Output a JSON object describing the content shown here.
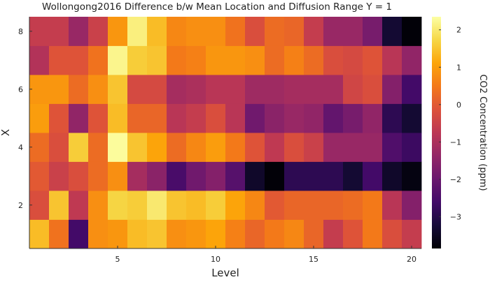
{
  "chart_data": {
    "type": "heatmap",
    "title": "Wollongong2016 Difference b/w Mean Location and Diffusion Range Y = 1",
    "xlabel": "Level",
    "ylabel": "X",
    "colorbar_label": "CO2 Concentration (ppm)",
    "colormap": "inferno",
    "x_categories": [
      1,
      2,
      3,
      4,
      5,
      6,
      7,
      8,
      9,
      10,
      11,
      12,
      13,
      14,
      15,
      16,
      17,
      18,
      19,
      20
    ],
    "y_categories": [
      1,
      2,
      3,
      4,
      5,
      6,
      7,
      8
    ],
    "xlim": [
      0.5,
      20.5
    ],
    "ylim": [
      0.5,
      8.5
    ],
    "x_ticks": [
      5,
      10,
      15,
      20
    ],
    "y_ticks": [
      2,
      4,
      6,
      8
    ],
    "color_range": [
      -3.85,
      2.35
    ],
    "colorbar_ticks": [
      2,
      1,
      0,
      -1,
      -2,
      -3
    ],
    "values": [
      [
        1.4,
        0.4,
        -2.6,
        0.8,
        0.9,
        1.4,
        1.5,
        0.8,
        0.9,
        1.1,
        0.6,
        0.2,
        0.5,
        0.7,
        0.2,
        -0.6,
        -0.1,
        0.5,
        -0.2,
        -0.6
      ],
      [
        -0.2,
        1.5,
        -0.7,
        0.8,
        1.7,
        1.6,
        2.0,
        1.5,
        1.4,
        1.6,
        1.1,
        0.7,
        0.0,
        0.2,
        0.2,
        0.2,
        0.3,
        0.5,
        -0.8,
        -1.6
      ],
      [
        0.0,
        -0.5,
        -0.2,
        0.3,
        0.8,
        -1.1,
        -1.5,
        -2.5,
        -1.9,
        -1.6,
        -2.3,
        -3.4,
        -3.8,
        -2.9,
        -2.9,
        -2.9,
        -3.3,
        -2.6,
        -3.4,
        -3.7
      ],
      [
        0.3,
        -0.2,
        1.6,
        0.3,
        2.3,
        1.5,
        1.1,
        0.3,
        0.7,
        1.0,
        0.5,
        -0.1,
        -0.7,
        -0.2,
        -0.5,
        -1.3,
        -1.3,
        -1.3,
        -2.4,
        -2.7
      ],
      [
        1.0,
        -0.1,
        -1.4,
        -0.1,
        1.4,
        0.2,
        0.2,
        -0.8,
        -0.6,
        -0.2,
        -0.8,
        -1.9,
        -1.5,
        -1.3,
        -1.4,
        -2.1,
        -1.8,
        -1.4,
        -2.9,
        -3.3
      ],
      [
        0.9,
        0.9,
        0.3,
        0.8,
        1.5,
        -0.3,
        -0.3,
        -1.1,
        -1.0,
        -0.8,
        -0.8,
        -1.2,
        -1.2,
        -1.1,
        -1.1,
        -1.1,
        -0.4,
        -0.2,
        -1.6,
        -2.6
      ],
      [
        -0.9,
        -0.1,
        -0.1,
        0.4,
        2.2,
        1.6,
        1.5,
        0.5,
        0.6,
        0.9,
        0.9,
        0.8,
        0.3,
        0.6,
        0.3,
        -0.2,
        -0.3,
        -0.1,
        -0.8,
        -1.4
      ],
      [
        -0.6,
        -0.6,
        -1.3,
        -0.5,
        0.9,
        2.1,
        1.4,
        0.7,
        0.8,
        0.8,
        0.4,
        -0.2,
        0.3,
        0.2,
        -0.6,
        -1.3,
        -1.3,
        -1.8,
        -3.3,
        -3.8
      ]
    ]
  }
}
